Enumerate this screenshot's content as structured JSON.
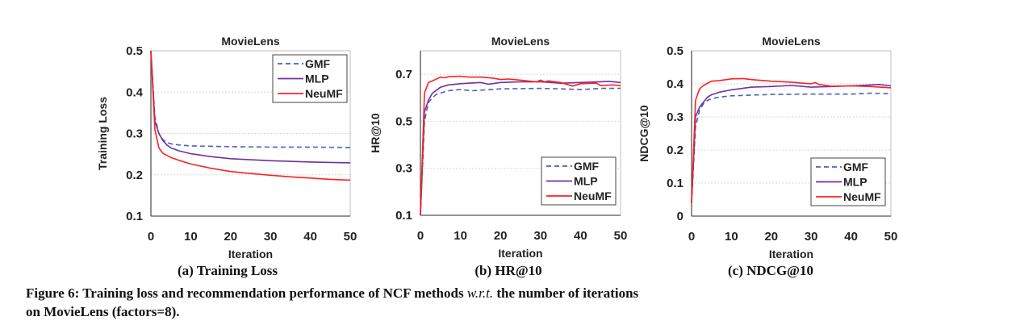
{
  "chart_data": [
    {
      "type": "line",
      "title": "MovieLens",
      "xlabel": "Iteration",
      "ylabel": "Training Loss",
      "xlim": [
        0,
        50
      ],
      "ylim": [
        0.1,
        0.5
      ],
      "xticks": [
        0,
        10,
        20,
        30,
        40,
        50
      ],
      "yticks": [
        0.1,
        0.2,
        0.3,
        0.4,
        0.5
      ],
      "ytick_labels": [
        "0.1",
        "0.2",
        "0.3",
        "0.4",
        "0.5"
      ],
      "grid": "horizontal dotted",
      "legend": "top-right",
      "series": [
        {
          "name": "GMF",
          "color": "#4a5fc1",
          "dash": true,
          "x": [
            0,
            1,
            2,
            3,
            4,
            5,
            7,
            10,
            20,
            30,
            40,
            50
          ],
          "y": [
            0.5,
            0.34,
            0.3,
            0.285,
            0.278,
            0.275,
            0.272,
            0.27,
            0.268,
            0.267,
            0.267,
            0.266
          ]
        },
        {
          "name": "MLP",
          "color": "#7030a0",
          "dash": false,
          "x": [
            0,
            1,
            2,
            3,
            4,
            5,
            7,
            10,
            15,
            20,
            30,
            40,
            50
          ],
          "y": [
            0.5,
            0.33,
            0.3,
            0.283,
            0.272,
            0.265,
            0.258,
            0.251,
            0.244,
            0.239,
            0.234,
            0.231,
            0.229
          ]
        },
        {
          "name": "NeuMF",
          "color": "#ff2020",
          "dash": false,
          "x": [
            0,
            1,
            2,
            3,
            5,
            7,
            10,
            15,
            20,
            25,
            30,
            35,
            40,
            45,
            50
          ],
          "y": [
            0.5,
            0.31,
            0.265,
            0.252,
            0.242,
            0.235,
            0.226,
            0.216,
            0.208,
            0.203,
            0.199,
            0.195,
            0.192,
            0.189,
            0.187
          ]
        }
      ]
    },
    {
      "type": "line",
      "title": "MovieLens",
      "xlabel": "Iteration",
      "ylabel": "HR@10",
      "xlim": [
        0,
        50
      ],
      "ylim": [
        0.1,
        0.8
      ],
      "xticks": [
        0,
        10,
        20,
        30,
        40,
        50
      ],
      "yticks": [
        0.1,
        0.3,
        0.5,
        0.7
      ],
      "ytick_labels": [
        "0.1",
        "0.3",
        "0.5",
        "0.7"
      ],
      "grid": "horizontal dotted",
      "legend": "bottom-right",
      "series": [
        {
          "name": "GMF",
          "color": "#4a5fc1",
          "dash": true,
          "x": [
            0,
            1,
            2,
            3,
            4,
            5,
            7,
            10,
            13,
            20,
            30,
            35,
            40,
            45,
            50
          ],
          "y": [
            0.1,
            0.5,
            0.58,
            0.6,
            0.615,
            0.62,
            0.63,
            0.635,
            0.63,
            0.638,
            0.64,
            0.638,
            0.635,
            0.64,
            0.64
          ]
        },
        {
          "name": "MLP",
          "color": "#7030a0",
          "dash": false,
          "x": [
            0,
            1,
            2,
            3,
            5,
            7,
            10,
            15,
            17,
            20,
            25,
            30,
            35,
            40,
            47,
            50
          ],
          "y": [
            0.1,
            0.54,
            0.59,
            0.62,
            0.645,
            0.655,
            0.66,
            0.665,
            0.658,
            0.665,
            0.668,
            0.668,
            0.662,
            0.665,
            0.67,
            0.665
          ]
        },
        {
          "name": "NeuMF",
          "color": "#ff2020",
          "dash": false,
          "x": [
            0,
            1,
            2,
            3,
            5,
            6,
            7,
            10,
            12,
            15,
            18,
            20,
            22,
            25,
            29,
            30,
            31,
            32,
            35,
            38,
            40,
            44,
            45,
            48,
            50
          ],
          "y": [
            0.1,
            0.62,
            0.665,
            0.672,
            0.688,
            0.685,
            0.69,
            0.692,
            0.688,
            0.688,
            0.684,
            0.678,
            0.68,
            0.675,
            0.668,
            0.675,
            0.668,
            0.672,
            0.665,
            0.65,
            0.66,
            0.662,
            0.652,
            0.655,
            0.652
          ]
        }
      ]
    },
    {
      "type": "line",
      "title": "MovieLens",
      "xlabel": "Iteration",
      "ylabel": "NDCG@10",
      "xlim": [
        0,
        50
      ],
      "ylim": [
        0,
        0.5
      ],
      "xticks": [
        0,
        10,
        20,
        30,
        40,
        50
      ],
      "yticks": [
        0,
        0.1,
        0.2,
        0.3,
        0.4,
        0.5
      ],
      "ytick_labels": [
        "0",
        "0.1",
        "0.2",
        "0.3",
        "0.4",
        "0.5"
      ],
      "grid": "horizontal dotted",
      "legend": "bottom-right",
      "series": [
        {
          "name": "GMF",
          "color": "#4a5fc1",
          "dash": true,
          "x": [
            0,
            1,
            2,
            3,
            4,
            5,
            7,
            10,
            20,
            30,
            40,
            45,
            50
          ],
          "y": [
            0.04,
            0.27,
            0.32,
            0.34,
            0.35,
            0.355,
            0.36,
            0.364,
            0.368,
            0.369,
            0.369,
            0.372,
            0.37
          ]
        },
        {
          "name": "MLP",
          "color": "#7030a0",
          "dash": false,
          "x": [
            0,
            1,
            2,
            3,
            4,
            5,
            7,
            10,
            15,
            20,
            25,
            30,
            35,
            40,
            47,
            50
          ],
          "y": [
            0.04,
            0.3,
            0.33,
            0.345,
            0.36,
            0.367,
            0.375,
            0.382,
            0.39,
            0.392,
            0.395,
            0.39,
            0.392,
            0.394,
            0.398,
            0.394
          ]
        },
        {
          "name": "NeuMF",
          "color": "#ff2020",
          "dash": false,
          "x": [
            0,
            1,
            2,
            3,
            5,
            7,
            10,
            13,
            15,
            20,
            25,
            28,
            30,
            31,
            32,
            35,
            40,
            45,
            50
          ],
          "y": [
            0.04,
            0.35,
            0.385,
            0.395,
            0.408,
            0.41,
            0.415,
            0.416,
            0.413,
            0.408,
            0.405,
            0.402,
            0.4,
            0.404,
            0.398,
            0.393,
            0.394,
            0.392,
            0.388
          ]
        }
      ]
    }
  ],
  "subcaptions": [
    "(a) Training Loss",
    "(b) HR@10",
    "(c) NDCG@10"
  ],
  "caption": {
    "part1": "Figure 6: Training loss and recommendation performance of NCF methods ",
    "italic": "w.r.t.",
    "part2": " the number of iterations",
    "line2": "on MovieLens (factors=8)."
  }
}
